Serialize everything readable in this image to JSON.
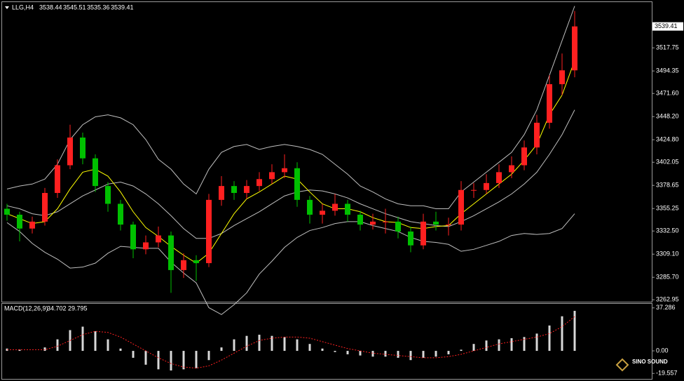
{
  "chart_data": [
    {
      "type": "candlestick",
      "symbol": "LLG,H4",
      "ohlc": [
        3538.44,
        3545.51,
        3535.36,
        3539.41
      ],
      "up_color": "#ff2020",
      "down_color": "#00c000",
      "open": [
        3355,
        3349,
        3335,
        3342,
        3371,
        3399,
        3427,
        3406,
        3378,
        3360,
        3339,
        3314,
        3321,
        3328,
        3293,
        3303,
        3300,
        3364,
        3378,
        3371,
        3378,
        3385,
        3392,
        3396,
        3364,
        3349,
        3353,
        3360,
        3349,
        3339,
        3342,
        3342,
        3332,
        3318,
        3342,
        3339,
        3339,
        3374,
        3374,
        3381,
        3392,
        3399,
        3417,
        3442,
        3481,
        3495
      ],
      "high": [
        3360,
        3352,
        3347,
        3376,
        3405,
        3440,
        3432,
        3410,
        3382,
        3364,
        3342,
        3328,
        3337,
        3332,
        3310,
        3308,
        3370,
        3388,
        3383,
        3384,
        3392,
        3400,
        3410,
        3402,
        3368,
        3360,
        3370,
        3364,
        3353,
        3350,
        3355,
        3347,
        3337,
        3350,
        3352,
        3346,
        3383,
        3381,
        3390,
        3400,
        3408,
        3424,
        3450,
        3490,
        3512,
        3555
      ],
      "low": [
        3343,
        3322,
        3330,
        3338,
        3366,
        3395,
        3400,
        3372,
        3352,
        3333,
        3305,
        3309,
        3316,
        3270,
        3285,
        3282,
        3296,
        3358,
        3364,
        3365,
        3373,
        3380,
        3386,
        3357,
        3340,
        3340,
        3348,
        3342,
        3333,
        3334,
        3330,
        3325,
        3311,
        3314,
        3333,
        3328,
        3333,
        3366,
        3370,
        3376,
        3386,
        3394,
        3410,
        3436,
        3470,
        3488
      ],
      "close": [
        3349,
        3335,
        3342,
        3371,
        3399,
        3427,
        3406,
        3378,
        3360,
        3339,
        3314,
        3321,
        3328,
        3293,
        3303,
        3300,
        3364,
        3378,
        3371,
        3378,
        3385,
        3392,
        3396,
        3364,
        3349,
        3353,
        3360,
        3349,
        3339,
        3342,
        3342,
        3332,
        3318,
        3342,
        3339,
        3339,
        3374,
        3374,
        3381,
        3392,
        3399,
        3417,
        3442,
        3481,
        3495,
        3539.41
      ],
      "series": [
        {
          "color": "#bfbfbf",
          "values": [
            3375,
            3378,
            3380,
            3385,
            3400,
            3425,
            3440,
            3448,
            3450,
            3447,
            3440,
            3425,
            3405,
            3395,
            3380,
            3370,
            3395,
            3412,
            3418,
            3420,
            3415,
            3418,
            3420,
            3418,
            3415,
            3410,
            3400,
            3390,
            3378,
            3372,
            3365,
            3360,
            3358,
            3358,
            3355,
            3355,
            3372,
            3382,
            3392,
            3402,
            3412,
            3430,
            3455,
            3490,
            3525,
            3560
          ]
        },
        {
          "color": "#bfbfbf",
          "values": [
            3358,
            3355,
            3350,
            3348,
            3352,
            3360,
            3368,
            3374,
            3380,
            3382,
            3378,
            3370,
            3360,
            3348,
            3335,
            3325,
            3325,
            3330,
            3338,
            3345,
            3352,
            3360,
            3368,
            3372,
            3374,
            3373,
            3370,
            3366,
            3360,
            3355,
            3350,
            3346,
            3342,
            3340,
            3338,
            3337,
            3342,
            3348,
            3355,
            3362,
            3370,
            3380,
            3392,
            3410,
            3430,
            3455
          ]
        },
        {
          "color": "#bfbfbf",
          "values": [
            3341,
            3332,
            3320,
            3311,
            3304,
            3295,
            3296,
            3300,
            3310,
            3317,
            3316,
            3315,
            3315,
            3301,
            3290,
            3280,
            3255,
            3248,
            3258,
            3270,
            3289,
            3302,
            3316,
            3326,
            3333,
            3336,
            3340,
            3342,
            3342,
            3338,
            3335,
            3332,
            3326,
            3322,
            3321,
            3319,
            3312,
            3314,
            3318,
            3322,
            3328,
            3330,
            3329,
            3330,
            3335,
            3350
          ]
        },
        {
          "color": "#ffff00",
          "values": [
            3350,
            3345,
            3340,
            3342,
            3355,
            3375,
            3392,
            3395,
            3388,
            3372,
            3352,
            3336,
            3327,
            3317,
            3308,
            3300,
            3310,
            3330,
            3350,
            3365,
            3372,
            3380,
            3388,
            3385,
            3372,
            3360,
            3355,
            3355,
            3352,
            3346,
            3342,
            3341,
            3336,
            3335,
            3337,
            3338,
            3350,
            3360,
            3370,
            3380,
            3390,
            3404,
            3420,
            3450,
            3470,
            3505
          ]
        }
      ],
      "ylim": [
        3261,
        3564
      ],
      "yticks": [
        {
          "value": 3517.75,
          "label": "3517.75"
        },
        {
          "value": 3494.35,
          "label": "3494.35"
        },
        {
          "value": 3471.6,
          "label": "3471.60"
        },
        {
          "value": 3448.2,
          "label": "3448.20"
        },
        {
          "value": 3424.8,
          "label": "3424.80"
        },
        {
          "value": 3402.05,
          "label": "3402.05"
        },
        {
          "value": 3378.65,
          "label": "3378.65"
        },
        {
          "value": 3355.25,
          "label": "3355.25"
        },
        {
          "value": 3332.5,
          "label": "3332.50"
        },
        {
          "value": 3309.1,
          "label": "3309.10"
        },
        {
          "value": 3285.7,
          "label": "3285.70"
        },
        {
          "value": 3262.95,
          "label": "3262.95"
        }
      ]
    },
    {
      "type": "macd",
      "title": "MACD(12,26,9)",
      "readout": [
        34.702,
        29.795
      ],
      "color": "#d8d8d8",
      "signal_color": "#ff2020",
      "values": [
        2,
        1,
        0,
        3,
        10,
        18,
        21,
        17,
        10,
        2,
        -6,
        -12,
        -16,
        -17,
        -16,
        -15,
        -8,
        3,
        10,
        13,
        14,
        13,
        12,
        10,
        6,
        2,
        -1,
        -3,
        -4,
        -5,
        -5,
        -6,
        -8,
        -6,
        -5,
        -3,
        1,
        6,
        9,
        10,
        11,
        12,
        15,
        22,
        30,
        34.702
      ],
      "signal": [
        1,
        1,
        1,
        1,
        4,
        9,
        14,
        17,
        16,
        12,
        6,
        0,
        -6,
        -11,
        -14,
        -15,
        -13,
        -8,
        -2,
        4,
        9,
        11,
        12,
        12,
        11,
        8,
        5,
        2,
        0,
        -2,
        -3,
        -4,
        -5,
        -6,
        -6,
        -5,
        -3,
        0,
        3,
        6,
        8,
        10,
        12,
        15,
        21,
        29.795
      ],
      "ylim": [
        -24.3,
        40.8
      ],
      "yticks": [
        37.286,
        {
          "value": 0,
          "label": "0.00"
        },
        -19.557
      ]
    }
  ],
  "logo": "SINO SOUND"
}
